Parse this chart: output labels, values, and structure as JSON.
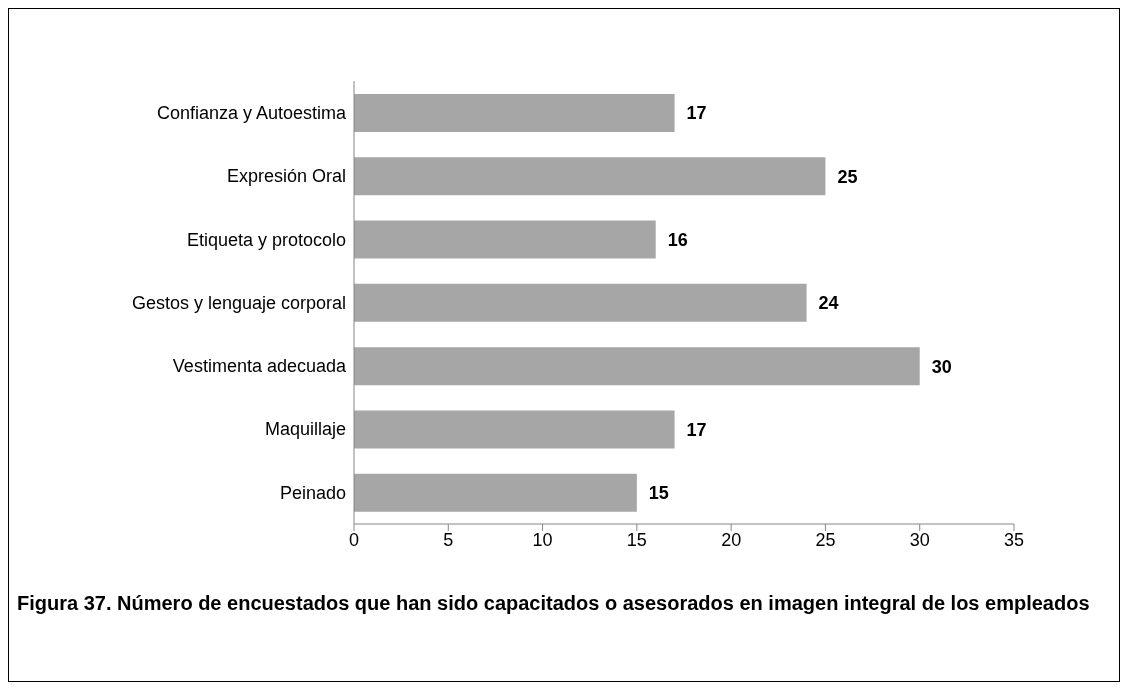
{
  "chart_data": {
    "type": "bar",
    "orientation": "horizontal",
    "categories": [
      "Confianza y Autoestima",
      "Expresión Oral",
      "Etiqueta y protocolo",
      "Gestos y lenguaje corporal",
      "Vestimenta adecuada",
      "Maquillaje",
      "Peinado"
    ],
    "values": [
      17,
      25,
      16,
      24,
      30,
      17,
      15
    ],
    "color": "#a6a6a6",
    "xlim": [
      0,
      35
    ],
    "xticks": [
      0,
      5,
      10,
      15,
      20,
      25,
      30,
      35
    ],
    "grid": false,
    "legend": false,
    "data_labels": true,
    "annotations": [
      "Figura 37.  Número de encuestados que han sido capacitados o asesorados en imagen integral de los empleados"
    ]
  }
}
